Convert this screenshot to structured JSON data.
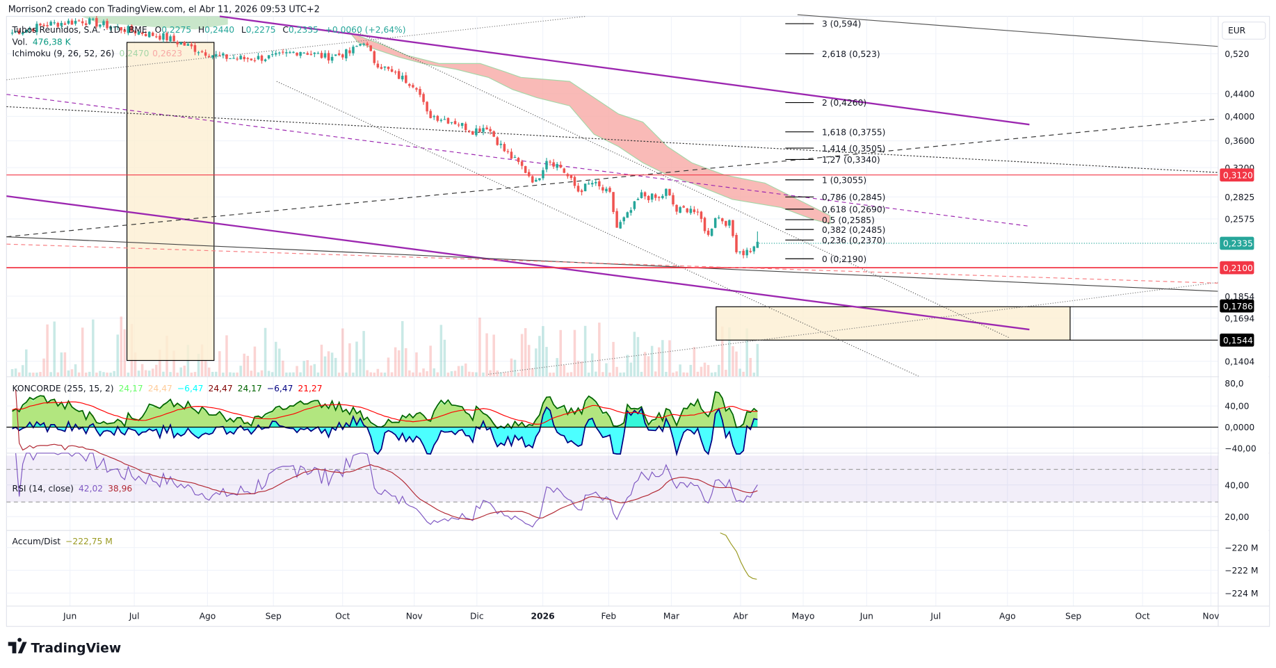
{
  "header": {
    "title": "Morrison2 creado con TradingView.com, el Abr 11, 2026 09:53 UTC+2"
  },
  "legend": {
    "symbol": "Tubos Reunidos, S.A. · 1D · BME",
    "o_label": "O",
    "o": "0,2275",
    "h_label": "H",
    "h": "0,2440",
    "l_label": "L",
    "l": "0,2275",
    "c_label": "C",
    "c": "0,2335",
    "change": "+0,0060 (+2,64%)",
    "vol_label": "Vol.",
    "vol": "476,38 K",
    "ichimoku_label": "Ichimoku (9, 26, 52, 26)",
    "ichimoku_v1": "0,2470",
    "ichimoku_v2": "0,2623"
  },
  "koncorde": {
    "label": "KONCORDE (255, 15, 2)",
    "values": [
      {
        "text": "24,17",
        "color": "#66ff66"
      },
      {
        "text": "24,47",
        "color": "#ffcc99"
      },
      {
        "text": "−6,47",
        "color": "#00ffff"
      },
      {
        "text": "24,47",
        "color": "#800000"
      },
      {
        "text": "24,17",
        "color": "#006400"
      },
      {
        "text": "−6,47",
        "color": "#000080"
      },
      {
        "text": "21,27",
        "color": "#ff0000"
      }
    ]
  },
  "rsi": {
    "label": "RSI (14, close)",
    "v1": "42,02",
    "v2": "38,96"
  },
  "accum": {
    "label": "Accum/Dist",
    "value": "−222,75 M"
  },
  "price_axis": {
    "currency": "EUR",
    "ticks": [
      "0,520",
      "0,4400",
      "0,4000",
      "0,3600",
      "0,3200",
      "0,2825",
      "0,2575",
      "0,1854",
      "0,1694",
      "0,1404"
    ],
    "badges": [
      {
        "text": "0,3120",
        "color": "#f23645"
      },
      {
        "text": "0,2335",
        "color": "#26a69a"
      },
      {
        "text": "0,2100",
        "color": "#f23645"
      },
      {
        "text": "0,1786",
        "color": "#000000"
      },
      {
        "text": "0,1544",
        "color": "#000000"
      }
    ]
  },
  "koncorde_axis": [
    "80,0",
    "40,00",
    "0,0000",
    "−40,00"
  ],
  "rsi_axis": [
    "40,00",
    "20,00"
  ],
  "accum_axis": [
    "−220 M",
    "−222 M",
    "−224 M"
  ],
  "fib_levels": [
    "3 (0,594)",
    "2,618 (0,523)",
    "2 (0,4260)",
    "1,618 (0,3755)",
    "1,414 (0,3505)",
    "1,27 (0,3340)",
    "1 (0,3055)",
    "0,786 (0,2845)",
    "0,618 (0,2690)",
    "0,5 (0,2585)",
    "0,382 (0,2485)",
    "0,236 (0,2370)",
    "0 (0,2190)"
  ],
  "time_axis": [
    "Jun",
    "Jul",
    "Ago",
    "Sep",
    "Oct",
    "Nov",
    "Dic",
    "2026",
    "Feb",
    "Mar",
    "Abr",
    "Mayo",
    "Jun",
    "Jul",
    "Ago",
    "Sep",
    "Oct",
    "Nov"
  ],
  "logo": "TradingView",
  "chart_data": {
    "type": "candlestick",
    "symbol": "Tubos Reunidos, S.A.",
    "interval": "1D",
    "price_scale": "log",
    "ylim": [
      0.135,
      0.62
    ],
    "close_path": [
      [
        0,
        0.569
      ],
      [
        10,
        0.589
      ],
      [
        20,
        0.599
      ],
      [
        31,
        0.579
      ],
      [
        43,
        0.559
      ],
      [
        52,
        0.531
      ],
      [
        59,
        0.513
      ],
      [
        66,
        0.509
      ],
      [
        75,
        0.513
      ],
      [
        82,
        0.527
      ],
      [
        89,
        0.513
      ],
      [
        96,
        0.522
      ],
      [
        100,
        0.55
      ],
      [
        103,
        0.504
      ],
      [
        108,
        0.479
      ],
      [
        115,
        0.454
      ],
      [
        118,
        0.402
      ],
      [
        126,
        0.389
      ],
      [
        131,
        0.375
      ],
      [
        135,
        0.382
      ],
      [
        140,
        0.344
      ],
      [
        145,
        0.321
      ],
      [
        149,
        0.3
      ],
      [
        152,
        0.333
      ],
      [
        156,
        0.321
      ],
      [
        161,
        0.29
      ],
      [
        165,
        0.3
      ],
      [
        170,
        0.285
      ],
      [
        172,
        0.248
      ],
      [
        175,
        0.261
      ],
      [
        179,
        0.285
      ],
      [
        184,
        0.28
      ],
      [
        186,
        0.29
      ],
      [
        189,
        0.266
      ],
      [
        193,
        0.27
      ],
      [
        196,
        0.256
      ],
      [
        198,
        0.239
      ],
      [
        200,
        0.261
      ],
      [
        204,
        0.252
      ],
      [
        206,
        0.227
      ],
      [
        208,
        0.223
      ],
      [
        211,
        0.227
      ],
      [
        212,
        0.2335
      ]
    ],
    "last": {
      "open": 0.2275,
      "high": 0.244,
      "low": 0.2275,
      "close": 0.2335
    },
    "horizontal_levels": [
      0.312,
      0.21,
      0.1786,
      0.1544
    ]
  }
}
